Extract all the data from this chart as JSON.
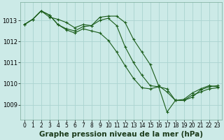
{
  "background_color": "#cceae7",
  "grid_color": "#aad4d0",
  "line_color": "#1a5c1a",
  "marker_color": "#1a5c1a",
  "xlabel": "Graphe pression niveau de la mer (hPa)",
  "xlabel_fontsize": 7.5,
  "xtick_fontsize": 5.5,
  "ytick_fontsize": 6.0,
  "xlim": [
    -0.5,
    23.5
  ],
  "ylim": [
    1008.3,
    1013.85
  ],
  "yticks": [
    1009,
    1010,
    1011,
    1012,
    1013
  ],
  "xticks": [
    0,
    1,
    2,
    3,
    4,
    5,
    6,
    7,
    8,
    9,
    10,
    11,
    12,
    13,
    14,
    15,
    16,
    17,
    18,
    19,
    20,
    21,
    22,
    23
  ],
  "series1_x": [
    0,
    1,
    2,
    3,
    4,
    5,
    6,
    7,
    8,
    9,
    10,
    11,
    12,
    13,
    14,
    15,
    16,
    17,
    18,
    19,
    20,
    21,
    22,
    23
  ],
  "series1_y": [
    1012.8,
    1013.05,
    1013.45,
    1013.15,
    1013.05,
    1012.9,
    1012.65,
    1012.8,
    1012.75,
    1013.15,
    1013.2,
    1013.2,
    1012.9,
    1012.1,
    1011.5,
    1010.9,
    1009.9,
    1009.6,
    1009.2,
    1009.2,
    1009.35,
    1009.7,
    1009.85,
    1009.9
  ],
  "series2_x": [
    0,
    1,
    2,
    3,
    4,
    5,
    6,
    7,
    8,
    9,
    10,
    11,
    12,
    13,
    14,
    15,
    16,
    17,
    18,
    19,
    20,
    21,
    22,
    23
  ],
  "series2_y": [
    1012.8,
    1013.05,
    1013.45,
    1013.25,
    1012.8,
    1012.6,
    1012.5,
    1012.7,
    1012.75,
    1013.0,
    1013.1,
    1012.75,
    1011.75,
    1011.0,
    1010.4,
    1009.9,
    1009.85,
    1008.65,
    1009.2,
    1009.25,
    1009.55,
    1009.75,
    1009.9,
    1009.85
  ],
  "series3_x": [
    0,
    1,
    2,
    3,
    4,
    5,
    6,
    7,
    8,
    9,
    10,
    11,
    12,
    13,
    14,
    15,
    16,
    17,
    18,
    19,
    20,
    21,
    22,
    23
  ],
  "series3_y": [
    1012.8,
    1013.05,
    1013.45,
    1013.25,
    1012.8,
    1012.55,
    1012.4,
    1012.6,
    1012.5,
    1012.4,
    1012.05,
    1011.5,
    1010.85,
    1010.25,
    1009.8,
    1009.75,
    1009.85,
    1009.75,
    1009.2,
    1009.2,
    1009.45,
    1009.6,
    1009.75,
    1009.8
  ]
}
